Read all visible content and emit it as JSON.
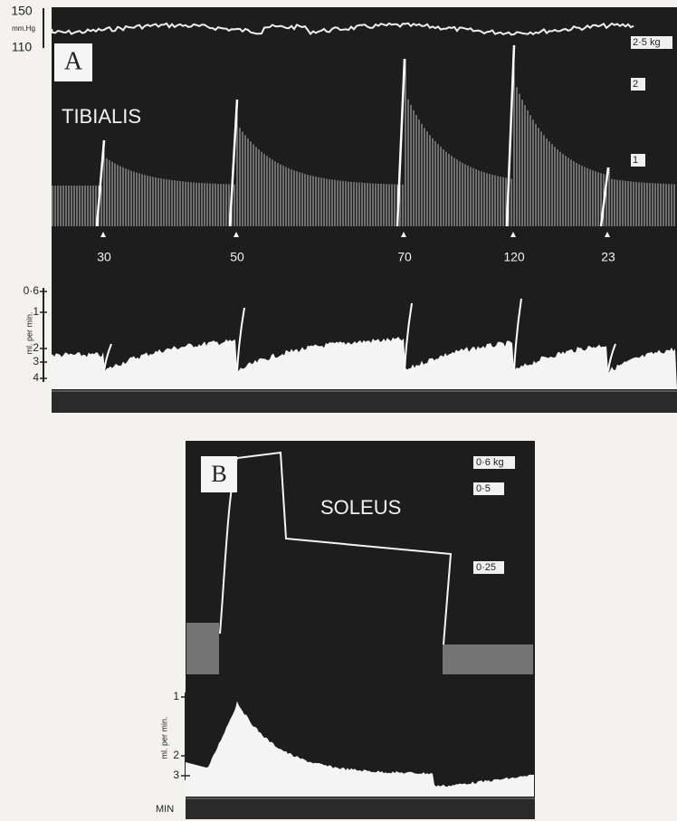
{
  "panel_a": {
    "label": "A",
    "muscle": "TIBIALIS",
    "pressure_scale": {
      "top": "150",
      "unit": "mm.Hg",
      "bottom": "110"
    },
    "tension_scale": [
      "2·5 kg",
      "2",
      "1"
    ],
    "stimulus_labels": [
      "30",
      "50",
      "70",
      "120",
      "23"
    ],
    "flow_scale": {
      "ticks": [
        "0·6",
        "1",
        "2",
        "3",
        "4"
      ],
      "unit": "ml. per min."
    }
  },
  "panel_b": {
    "label": "B",
    "muscle": "SOLEUS",
    "tension_scale": [
      "0·6 kg",
      "0·5",
      "0·25"
    ],
    "flow_scale": {
      "ticks": [
        "1",
        "2",
        "3"
      ],
      "unit": "ml. per min."
    },
    "time_label": "MIN"
  }
}
